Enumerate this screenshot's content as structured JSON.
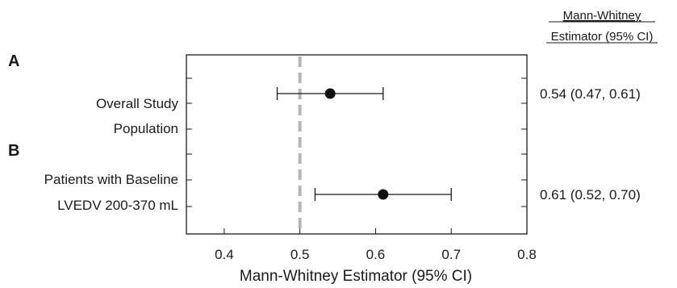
{
  "chart_data": {
    "type": "forest",
    "xlabel": "Mann-Whitney Estimator (95% CI)",
    "xlim": [
      0.35,
      0.8
    ],
    "xticks": [
      0.4,
      0.5,
      0.6,
      0.7,
      0.8
    ],
    "xtick_labels": [
      "0.4",
      "0.5",
      "0.6",
      "0.7",
      "0.8"
    ],
    "reference_value": 0.5,
    "reference_color": "#b5b5b5",
    "column_header": [
      "Mann-Whitney",
      "Estimator (95% CI)"
    ],
    "panels": [
      {
        "letter": "A",
        "label_lines": [
          "Overall Study",
          "Population"
        ],
        "estimate": 0.54,
        "lower": 0.47,
        "upper": 0.61,
        "ci_text": "0.54 (0.47, 0.61)"
      },
      {
        "letter": "B",
        "label_lines": [
          "Patients with Baseline",
          "LVEDV 200-370 mL"
        ],
        "estimate": 0.61,
        "lower": 0.52,
        "upper": 0.7,
        "ci_text": "0.61 (0.52, 0.70)"
      }
    ],
    "grid": false
  }
}
